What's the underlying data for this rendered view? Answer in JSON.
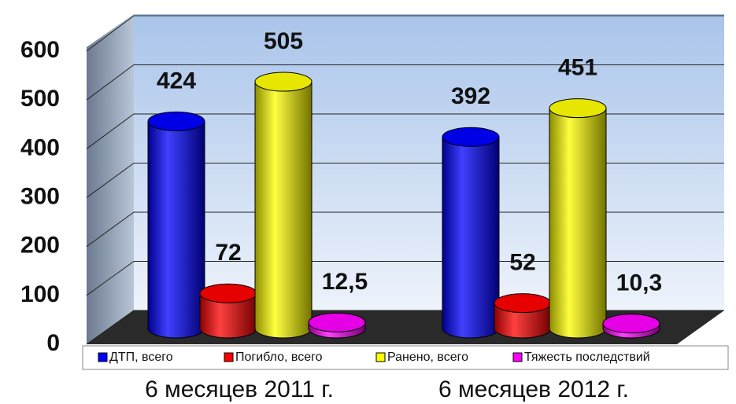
{
  "chart_data": {
    "type": "bar",
    "categories": [
      "6 месяцев 2011 г.",
      "6 месяцев 2012 г."
    ],
    "series": [
      {
        "name": "ДТП, всего",
        "color": "#0000ff",
        "values": [
          424,
          392
        ]
      },
      {
        "name": "Погибло, всего",
        "color": "#ff0000",
        "values": [
          72,
          52
        ]
      },
      {
        "name": "Ранено, всего",
        "color": "#ffff00",
        "values": [
          505,
          451
        ]
      },
      {
        "name": "Тяжесть последствий",
        "color": "#ff00ff",
        "values": [
          12.5,
          10.3
        ],
        "value_labels": [
          "12,5",
          "10,3"
        ]
      }
    ],
    "ylim": [
      0,
      600
    ],
    "yticks": [
      0,
      100,
      200,
      300,
      400,
      500,
      600
    ],
    "grid": true,
    "legend": "bottom"
  }
}
